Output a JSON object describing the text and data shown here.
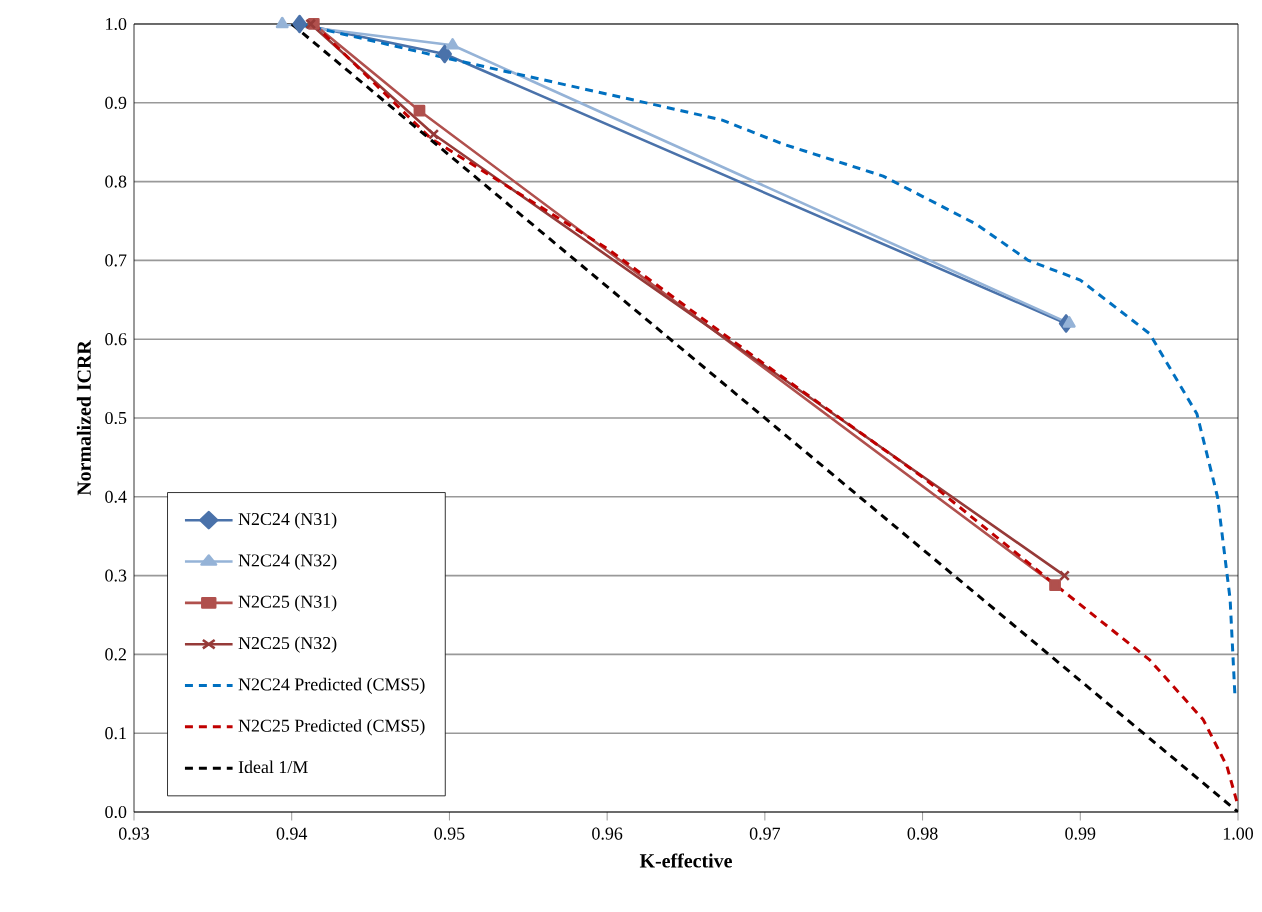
{
  "chart_data": {
    "type": "line",
    "xlabel": "K-effective",
    "ylabel": "Normalized ICRR",
    "xlim": [
      0.93,
      1.0
    ],
    "ylim": [
      0.0,
      1.0
    ],
    "xticks": [
      {
        "value": 0.93,
        "label": "0.93"
      },
      {
        "value": 0.94,
        "label": "0.94"
      },
      {
        "value": 0.95,
        "label": "0.95"
      },
      {
        "value": 0.96,
        "label": "0.96"
      },
      {
        "value": 0.97,
        "label": "0.97"
      },
      {
        "value": 0.98,
        "label": "0.98"
      },
      {
        "value": 0.99,
        "label": "0.99"
      },
      {
        "value": 1.0,
        "label": "1.00"
      }
    ],
    "yticks": [
      {
        "value": 0.0,
        "label": "0.0"
      },
      {
        "value": 0.1,
        "label": "0.1"
      },
      {
        "value": 0.2,
        "label": "0.2"
      },
      {
        "value": 0.3,
        "label": "0.3"
      },
      {
        "value": 0.4,
        "label": "0.4"
      },
      {
        "value": 0.5,
        "label": "0.5"
      },
      {
        "value": 0.6,
        "label": "0.6"
      },
      {
        "value": 0.7,
        "label": "0.7"
      },
      {
        "value": 0.8,
        "label": "0.8"
      },
      {
        "value": 0.9,
        "label": "0.9"
      },
      {
        "value": 1.0,
        "label": "1.0"
      }
    ],
    "grid": "y",
    "legend": "bottom left",
    "series": [
      {
        "name": "N2C24 (N31)",
        "color": "#4a72aa",
        "marker": "diamond",
        "line_style": "solid",
        "x": [
          0.9405,
          0.9497,
          0.9891
        ],
        "values": [
          1.0,
          0.962,
          0.62
        ]
      },
      {
        "name": "N2C24 (N32)",
        "color": "#95b3d7",
        "marker": "triangle",
        "line_style": "solid",
        "x": [
          0.9394,
          0.9502,
          0.9893
        ],
        "values": [
          1.0,
          0.973,
          0.62
        ]
      },
      {
        "name": "N2C25 (N31)",
        "color": "#b0504d",
        "marker": "square",
        "line_style": "solid",
        "x": [
          0.9414,
          0.9481,
          0.9884
        ],
        "values": [
          1.0,
          0.89,
          0.288
        ]
      },
      {
        "name": "N2C25 (N32)",
        "color": "#963a38",
        "marker": "cross",
        "line_style": "solid",
        "x": [
          0.9412,
          0.949,
          0.989
        ],
        "values": [
          1.0,
          0.86,
          0.3
        ]
      },
      {
        "name": "N2C24 Predicted (CMS5)",
        "color": "#0070c0",
        "marker": "none",
        "line_style": "dashed",
        "x": [
          0.9405,
          0.9504,
          0.9647,
          0.9673,
          0.9711,
          0.9775,
          0.9834,
          0.9867,
          0.99,
          0.9944,
          0.9974,
          0.9987,
          0.9995,
          0.9998
        ],
        "values": [
          1.0,
          0.954,
          0.89,
          0.878,
          0.848,
          0.807,
          0.746,
          0.7,
          0.675,
          0.607,
          0.505,
          0.4,
          0.27,
          0.15
        ]
      },
      {
        "name": "N2C25 Predicted (CMS5)",
        "color": "#c00000",
        "marker": "none",
        "line_style": "dashed",
        "x": [
          0.9414,
          0.9488,
          0.96,
          0.97,
          0.98,
          0.9885,
          0.9944,
          0.9978,
          0.9993,
          1.0
        ],
        "values": [
          1.0,
          0.855,
          0.715,
          0.568,
          0.425,
          0.287,
          0.193,
          0.117,
          0.058,
          0.008
        ]
      },
      {
        "name": "Ideal 1/M",
        "color": "#000000",
        "marker": "none",
        "line_style": "dashed",
        "x": [
          0.94,
          1.0
        ],
        "values": [
          1.0,
          0.0
        ]
      }
    ]
  }
}
